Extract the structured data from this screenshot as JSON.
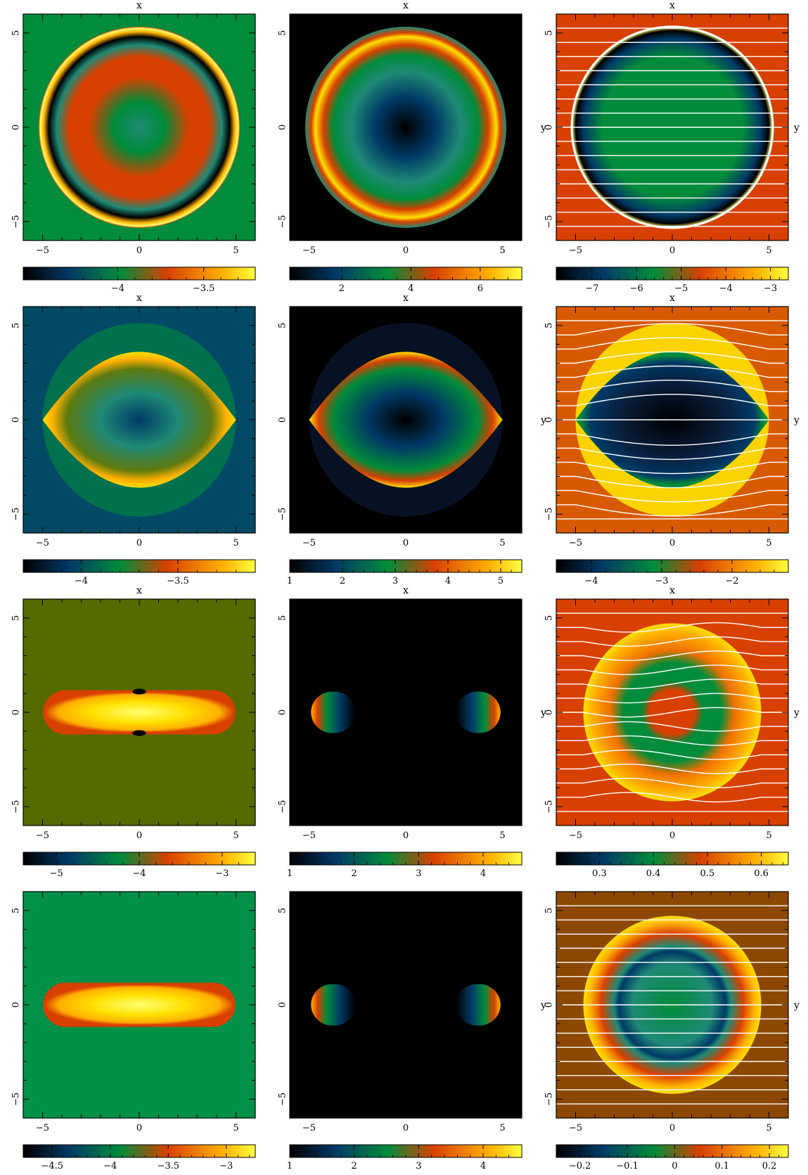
{
  "chart_data": {
    "type": "heatmap",
    "panel_defaults": {
      "x_label": "x",
      "y_label": "y",
      "xlim": [
        -6,
        6
      ],
      "ylim": [
        -6,
        6
      ],
      "major_ticks": [
        -5,
        0,
        5
      ],
      "minor_tick_step": 1
    },
    "panels": [
      {
        "row": 0,
        "col": 0,
        "x_label": "x",
        "y_label": "",
        "field": "ring",
        "background": "#008c3a",
        "colorbar": {
          "ticks": [
            -4,
            -3.5
          ],
          "range": [
            -4.55,
            -3.2
          ]
        }
      },
      {
        "row": 0,
        "col": 1,
        "x_label": "x",
        "y_label": "",
        "field": "shell",
        "background": "#000000",
        "colorbar": {
          "ticks": [
            2,
            4,
            6
          ],
          "range": [
            0.5,
            7.2
          ]
        }
      },
      {
        "row": 0,
        "col": 2,
        "x_label": "x",
        "y_label": "y",
        "field": "field_lines_circle",
        "background": "#d84000",
        "field_lines": true,
        "colorbar": {
          "ticks": [
            -7,
            -6,
            -5,
            -4,
            -3
          ],
          "range": [
            -7.8,
            -2.6
          ]
        }
      },
      {
        "row": 1,
        "col": 0,
        "x_label": "x",
        "y_label": "",
        "field": "eye",
        "background": "#004a66",
        "colorbar": {
          "ticks": [
            -4,
            -3.5
          ],
          "range": [
            -4.3,
            -3.1
          ]
        }
      },
      {
        "row": 1,
        "col": 1,
        "x_label": "x",
        "y_label": "",
        "field": "eye_density",
        "background": "#000000",
        "colorbar": {
          "ticks": [
            1,
            2,
            3,
            4,
            5
          ],
          "range": [
            1,
            5.4
          ]
        }
      },
      {
        "row": 1,
        "col": 2,
        "x_label": "x",
        "y_label": "y",
        "field": "field_lines_eye",
        "background": "#d85a00",
        "field_lines": true,
        "colorbar": {
          "ticks": [
            -4,
            -3,
            -2
          ],
          "range": [
            -4.5,
            -1.2
          ]
        }
      },
      {
        "row": 2,
        "col": 0,
        "x_label": "x",
        "y_label": "",
        "field": "capsule",
        "background": "#556b00",
        "colorbar": {
          "ticks": [
            -5,
            -4,
            -3
          ],
          "range": [
            -5.4,
            -2.6
          ]
        }
      },
      {
        "row": 2,
        "col": 1,
        "x_label": "x",
        "y_label": "",
        "field": "lobes",
        "background": "#000000",
        "colorbar": {
          "ticks": [
            1,
            2,
            3,
            4
          ],
          "range": [
            1,
            4.6
          ]
        }
      },
      {
        "row": 2,
        "col": 2,
        "x_label": "x",
        "y_label": "y",
        "field": "field_lines_disk",
        "background": "#d84000",
        "field_lines": true,
        "colorbar": {
          "ticks": [
            0.3,
            0.4,
            0.5,
            0.6
          ],
          "range": [
            0.22,
            0.65
          ]
        }
      },
      {
        "row": 3,
        "col": 0,
        "x_label": "",
        "y_label": "",
        "field": "capsule_late",
        "background": "#009048",
        "colorbar": {
          "ticks": [
            -4.5,
            -4,
            -3.5,
            -3
          ],
          "range": [
            -4.75,
            -2.75
          ]
        }
      },
      {
        "row": 3,
        "col": 1,
        "x_label": "",
        "y_label": "",
        "field": "lobes_late",
        "background": "#000000",
        "colorbar": {
          "ticks": [
            1,
            2,
            3,
            4
          ],
          "range": [
            1,
            4.6
          ]
        }
      },
      {
        "row": 3,
        "col": 2,
        "x_label": "",
        "y_label": "y",
        "field": "field_lines_late",
        "background": "#8c4800",
        "field_lines": true,
        "colorbar": {
          "ticks": [
            -0.2,
            -0.1,
            0,
            0.1,
            0.2
          ],
          "range": [
            -0.25,
            0.24
          ]
        }
      }
    ],
    "colormap": [
      "#000000",
      "#003a66",
      "#008c3a",
      "#d84000",
      "#ffd800",
      "#ffff60"
    ]
  }
}
